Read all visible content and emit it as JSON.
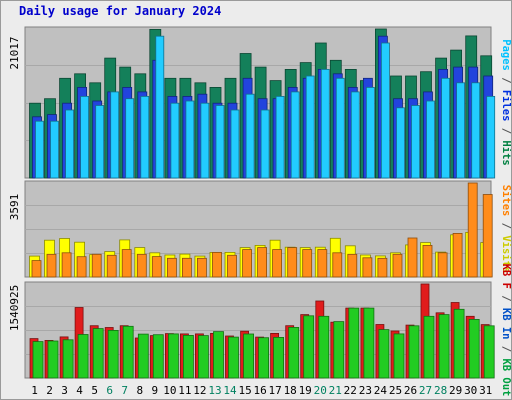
{
  "title": "Daily usage for January 2024",
  "chart_data": [
    {
      "type": "bar",
      "categories": [
        "1",
        "2",
        "3",
        "4",
        "5",
        "6",
        "7",
        "8",
        "9",
        "10",
        "11",
        "12",
        "13",
        "14",
        "15",
        "16",
        "17",
        "18",
        "19",
        "20",
        "21",
        "22",
        "23",
        "24",
        "25",
        "26",
        "27",
        "28",
        "29",
        "30",
        "31"
      ],
      "weekend_days": [
        "6",
        "7",
        "13",
        "14",
        "20",
        "21",
        "27",
        "28"
      ],
      "max_label": "21017",
      "ylim": [
        0,
        21017
      ],
      "series_label_parts": [
        {
          "text": "Pages",
          "color": "#00c0ff"
        },
        {
          "text": " / ",
          "color": "#555555"
        },
        {
          "text": "Files",
          "color": "#0030e0"
        },
        {
          "text": " / ",
          "color": "#555555"
        },
        {
          "text": "Hits",
          "color": "#008040"
        }
      ],
      "series": [
        {
          "name": "Hits",
          "color": "#14805a",
          "values": [
            10545,
            11187,
            14063,
            14702,
            13423,
            16919,
            15640,
            14702,
            20954,
            14063,
            14063,
            13423,
            12786,
            14063,
            17558,
            15640,
            13743,
            15320,
            16278,
            19037,
            16597,
            15320,
            13743,
            21017,
            14383,
            14383,
            15001,
            16919,
            18036,
            20041,
            17240
          ]
        },
        {
          "name": "Files",
          "color": "#2244dd",
          "values": [
            8627,
            8947,
            10545,
            12786,
            10865,
            12142,
            12786,
            12142,
            16597,
            11504,
            11504,
            11827,
            10545,
            10545,
            14063,
            11187,
            11187,
            12786,
            14063,
            15320,
            14702,
            12786,
            14063,
            19997,
            11187,
            11187,
            12142,
            15320,
            15640,
            15640,
            14383
          ]
        },
        {
          "name": "Pages",
          "color": "#22ccff",
          "values": [
            8009,
            8009,
            9588,
            11504,
            10225,
            12142,
            11187,
            11504,
            19997,
            10545,
            10865,
            10545,
            10225,
            9588,
            11827,
            9588,
            11504,
            12142,
            14383,
            15320,
            14063,
            12142,
            12786,
            19037,
            9905,
            10225,
            10865,
            14063,
            13423,
            13423,
            11504
          ]
        }
      ]
    },
    {
      "type": "bar",
      "categories": [
        "1",
        "2",
        "3",
        "4",
        "5",
        "6",
        "7",
        "8",
        "9",
        "10",
        "11",
        "12",
        "13",
        "14",
        "15",
        "16",
        "17",
        "18",
        "19",
        "20",
        "21",
        "22",
        "23",
        "24",
        "25",
        "26",
        "27",
        "28",
        "29",
        "30",
        "31"
      ],
      "max_label": "3591",
      "ylim": [
        0,
        3591
      ],
      "series_label_parts": [
        {
          "text": "Sites",
          "color": "#ff8000"
        },
        {
          "text": " / ",
          "color": "#555555"
        },
        {
          "text": "Visits",
          "color": "#cccc00"
        }
      ],
      "series": [
        {
          "name": "Visits",
          "color": "#ffff00",
          "values": [
            798,
            1404,
            1471,
            1330,
            857,
            970,
            1419,
            1122,
            923,
            839,
            873,
            798,
            939,
            939,
            1122,
            1207,
            1404,
            1139,
            1122,
            1140,
            1479,
            1190,
            839,
            806,
            923,
            1225,
            1315,
            951,
            1612,
            1703,
            1315
          ]
        },
        {
          "name": "Sites",
          "color": "#ff8c1a",
          "values": [
            627,
            866,
            923,
            775,
            866,
            830,
            1045,
            866,
            778,
            713,
            713,
            713,
            939,
            830,
            1045,
            1122,
            1045,
            1122,
            1045,
            1045,
            923,
            866,
            733,
            713,
            866,
            1489,
            1207,
            923,
            1665,
            3591,
            3151
          ]
        }
      ]
    },
    {
      "type": "bar",
      "categories": [
        "1",
        "2",
        "3",
        "4",
        "5",
        "6",
        "7",
        "8",
        "9",
        "10",
        "11",
        "12",
        "13",
        "14",
        "15",
        "16",
        "17",
        "18",
        "19",
        "20",
        "21",
        "22",
        "23",
        "24",
        "25",
        "26",
        "27",
        "28",
        "29",
        "30",
        "31"
      ],
      "max_label": "1540925",
      "ylim": [
        0,
        1540925
      ],
      "series_label_parts": [
        {
          "text": "KB F",
          "color": "#cc0000"
        },
        {
          "text": " / ",
          "color": "#555555"
        },
        {
          "text": "KB In",
          "color": "#0050c8"
        },
        {
          "text": " / ",
          "color": "#555555"
        },
        {
          "text": "KB Out",
          "color": "#00a040"
        }
      ],
      "series": [
        {
          "name": "KB F",
          "color": "#e01c1c",
          "values": [
            645240,
            616347,
            674133,
            1155632,
            857131,
            828239,
            857131,
            655500,
            695800,
            728110,
            723660,
            723660,
            731000,
            688400,
            767000,
            670000,
            731000,
            857131,
            1040022,
            1261573,
            915017,
            1146000,
            1146000,
            877000,
            771000,
            866762,
            1540925,
            1069000,
            1237000,
            1011000,
            875000
          ]
        },
        {
          "name": "KB Out",
          "color": "#22cc22",
          "values": [
            597085,
            606716,
            625978,
            712664,
            809000,
            780000,
            847500,
            720000,
            710000,
            723000,
            698000,
            695000,
            760000,
            670000,
            721000,
            660000,
            665000,
            830000,
            1020000,
            1011000,
            925000,
            1146000,
            1146000,
            794000,
            723000,
            856000,
            1011000,
            1040000,
            1127000,
            961000,
            856000
          ]
        }
      ]
    }
  ]
}
